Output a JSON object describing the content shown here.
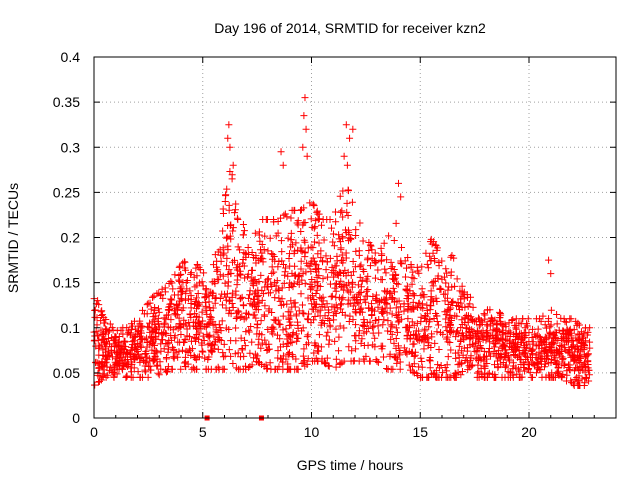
{
  "chart_data": {
    "type": "scatter",
    "title": "Day 196 of 2014, SRMTID for receiver kzn2",
    "xlabel": "GPS time / hours",
    "ylabel": "SRMTID / TECUs",
    "xlim": [
      0,
      24
    ],
    "ylim": [
      0,
      0.4
    ],
    "x_ticks": [
      0,
      5,
      10,
      15,
      20
    ],
    "x_tick_labels": [
      "0",
      "5",
      "10",
      "15",
      "20"
    ],
    "y_ticks": [
      0,
      0.05,
      0.1,
      0.15,
      0.2,
      0.25,
      0.3,
      0.35,
      0.4
    ],
    "y_tick_labels": [
      "0",
      "0.05",
      "0.1",
      "0.15",
      "0.2",
      "0.25",
      "0.3",
      "0.35",
      "0.4"
    ],
    "grid": true,
    "marker": "+",
    "color": "#ff0000",
    "x_range_of_data": [
      0,
      22.8
    ],
    "envelope": {
      "x": [
        0,
        0.5,
        1,
        1.5,
        2,
        2.5,
        3,
        3.5,
        4,
        4.5,
        5,
        5.5,
        6,
        6.3,
        6.6,
        7,
        7.5,
        8,
        8.5,
        9,
        9.5,
        10,
        10.5,
        11,
        11.5,
        12,
        12.5,
        13,
        13.5,
        14,
        14.5,
        15,
        15.5,
        16,
        16.5,
        17,
        17.5,
        18,
        18.5,
        19,
        19.5,
        20,
        20.5,
        21,
        21.5,
        22,
        22.5,
        22.8
      ],
      "low": [
        0.04,
        0.05,
        0.05,
        0.05,
        0.05,
        0.05,
        0.05,
        0.06,
        0.06,
        0.06,
        0.06,
        0.06,
        0.06,
        0.07,
        0.06,
        0.06,
        0.07,
        0.06,
        0.06,
        0.06,
        0.06,
        0.07,
        0.07,
        0.06,
        0.07,
        0.07,
        0.07,
        0.07,
        0.06,
        0.06,
        0.06,
        0.05,
        0.05,
        0.05,
        0.05,
        0.05,
        0.05,
        0.05,
        0.05,
        0.05,
        0.05,
        0.05,
        0.05,
        0.05,
        0.05,
        0.04,
        0.04,
        0.04
      ],
      "high": [
        0.14,
        0.11,
        0.1,
        0.1,
        0.11,
        0.13,
        0.14,
        0.15,
        0.17,
        0.18,
        0.16,
        0.17,
        0.24,
        0.28,
        0.22,
        0.22,
        0.22,
        0.22,
        0.22,
        0.23,
        0.23,
        0.24,
        0.22,
        0.22,
        0.26,
        0.24,
        0.2,
        0.18,
        0.2,
        0.22,
        0.17,
        0.17,
        0.2,
        0.18,
        0.18,
        0.14,
        0.13,
        0.12,
        0.12,
        0.11,
        0.11,
        0.11,
        0.11,
        0.12,
        0.11,
        0.11,
        0.1,
        0.1
      ]
    },
    "spikes": [
      {
        "x": 6.2,
        "y": 0.325
      },
      {
        "x": 6.15,
        "y": 0.31
      },
      {
        "x": 6.25,
        "y": 0.3
      },
      {
        "x": 6.4,
        "y": 0.28
      },
      {
        "x": 6.35,
        "y": 0.265
      },
      {
        "x": 8.6,
        "y": 0.295
      },
      {
        "x": 8.7,
        "y": 0.28
      },
      {
        "x": 9.7,
        "y": 0.355
      },
      {
        "x": 9.65,
        "y": 0.335
      },
      {
        "x": 9.75,
        "y": 0.32
      },
      {
        "x": 9.6,
        "y": 0.3
      },
      {
        "x": 9.8,
        "y": 0.29
      },
      {
        "x": 11.6,
        "y": 0.325
      },
      {
        "x": 11.9,
        "y": 0.32
      },
      {
        "x": 11.75,
        "y": 0.31
      },
      {
        "x": 11.5,
        "y": 0.29
      },
      {
        "x": 11.65,
        "y": 0.28
      },
      {
        "x": 14.0,
        "y": 0.26
      },
      {
        "x": 14.1,
        "y": 0.245
      },
      {
        "x": 20.9,
        "y": 0.175
      },
      {
        "x": 21.0,
        "y": 0.16
      }
    ],
    "zero_markers": [
      {
        "x": 5.2,
        "y": 0
      },
      {
        "x": 7.7,
        "y": 0
      }
    ]
  }
}
